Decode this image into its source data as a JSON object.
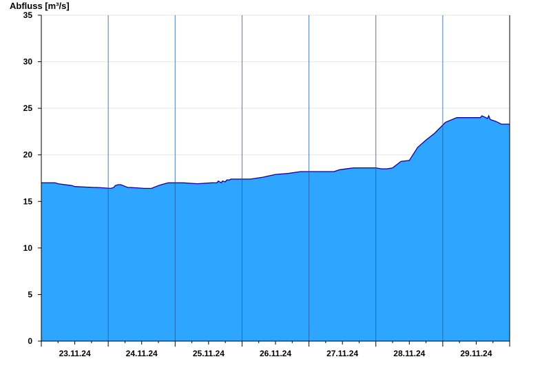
{
  "chart_data": {
    "type": "area",
    "ylabel": "Abfluss [m³/s]",
    "xlabel": "",
    "title": "",
    "ylim": [
      0,
      35
    ],
    "yticks": [
      0,
      5,
      10,
      15,
      20,
      25,
      30,
      35
    ],
    "xlim": [
      "2024-11-22T12:00",
      "2024-11-29T12:00"
    ],
    "day_labels": [
      "23.11.24",
      "24.11.24",
      "25.11.24",
      "26.11.24",
      "27.11.24",
      "28.11.24",
      "29.11.24"
    ],
    "day_boundaries": [
      "2024-11-23T12:00",
      "2024-11-24T12:00",
      "2024-11-25T12:00",
      "2024-11-26T12:00",
      "2024-11-27T12:00",
      "2024-11-28T12:00",
      "2024-11-29T12:00"
    ],
    "grid": true,
    "fill_color": "#2ea6ff",
    "line_color": "#0000b4",
    "series": [
      {
        "x": [
          "2024-11-22T12:00",
          "2024-11-22T17:00",
          "2024-11-22T18:00",
          "2024-11-22T23:00",
          "2024-11-23T00:00",
          "2024-11-23T07:00",
          "2024-11-23T08:00",
          "2024-11-23T13:00",
          "2024-11-23T14:00",
          "2024-11-23T14:30",
          "2024-11-23T15:30",
          "2024-11-23T16:30",
          "2024-11-23T19:00",
          "2024-11-23T20:00",
          "2024-11-24T01:00",
          "2024-11-24T03:30",
          "2024-11-24T06:00",
          "2024-11-24T07:00",
          "2024-11-24T09:30",
          "2024-11-24T12:00",
          "2024-11-24T15:00",
          "2024-11-24T20:00",
          "2024-11-25T01:00",
          "2024-11-25T03:00",
          "2024-11-25T03:30",
          "2024-11-25T04:30",
          "2024-11-25T05:00",
          "2024-11-25T06:00",
          "2024-11-25T06:30",
          "2024-11-25T07:30",
          "2024-11-25T08:00",
          "2024-11-25T15:00",
          "2024-11-25T19:30",
          "2024-11-26T00:00",
          "2024-11-26T04:30",
          "2024-11-26T09:00",
          "2024-11-26T11:00",
          "2024-11-26T14:00",
          "2024-11-26T21:00",
          "2024-11-26T23:00",
          "2024-11-27T04:00",
          "2024-11-27T06:00",
          "2024-11-27T07:00",
          "2024-11-27T09:30",
          "2024-11-27T12:00",
          "2024-11-27T14:00",
          "2024-11-27T16:00",
          "2024-11-27T18:00",
          "2024-11-27T21:00",
          "2024-11-28T00:00",
          "2024-11-28T03:00",
          "2024-11-28T06:00",
          "2024-11-28T09:00",
          "2024-11-28T13:00",
          "2024-11-28T17:00",
          "2024-11-28T20:00",
          "2024-11-29T00:00",
          "2024-11-29T01:30",
          "2024-11-29T02:00",
          "2024-11-29T03:30",
          "2024-11-29T04:00",
          "2024-11-29T04:30",
          "2024-11-29T05:00",
          "2024-11-29T06:00",
          "2024-11-29T07:00",
          "2024-11-29T09:00",
          "2024-11-29T12:00"
        ],
        "y": [
          17.0,
          17.0,
          16.9,
          16.7,
          16.6,
          16.5,
          16.5,
          16.4,
          16.5,
          16.7,
          16.8,
          16.8,
          16.5,
          16.5,
          16.4,
          16.4,
          16.7,
          16.8,
          17.0,
          17.0,
          17.0,
          16.9,
          17.0,
          17.0,
          17.2,
          17.0,
          17.2,
          17.1,
          17.3,
          17.3,
          17.4,
          17.4,
          17.6,
          17.9,
          18.0,
          18.2,
          18.2,
          18.2,
          18.2,
          18.4,
          18.6,
          18.6,
          18.6,
          18.6,
          18.6,
          18.5,
          18.5,
          18.6,
          19.3,
          19.4,
          20.8,
          21.6,
          22.3,
          23.5,
          24.0,
          24.0,
          24.0,
          24.0,
          24.2,
          24.0,
          23.9,
          24.2,
          23.8,
          23.7,
          23.6,
          23.3,
          23.3
        ]
      }
    ]
  }
}
